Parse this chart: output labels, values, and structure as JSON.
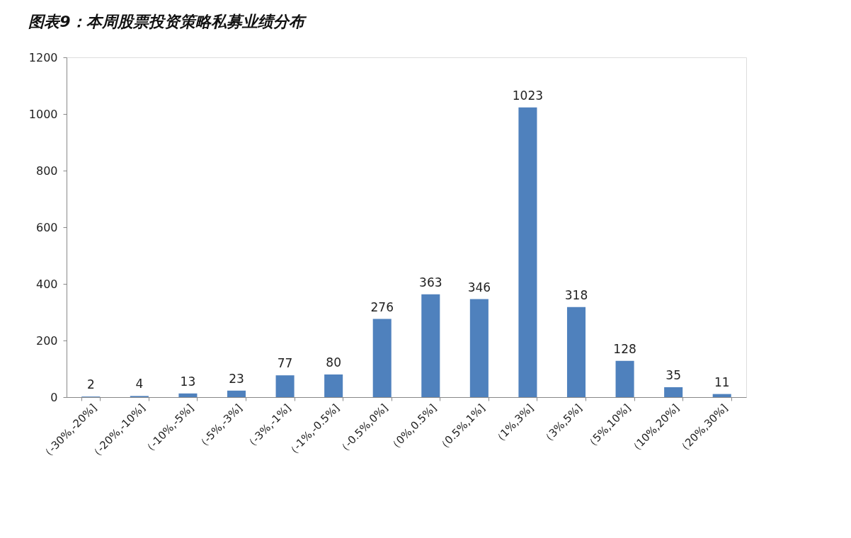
{
  "chart_data": {
    "type": "bar",
    "title": "图表9：本周股票投资策略私募业绩分布",
    "categories": [
      "（-30%,-20%]",
      "（-20%,-10%]",
      "（-10%,-5%]",
      "（-5%,-3%]",
      "（-3%,-1%]",
      "（-1%,-0.5%]",
      "（-0.5%,0%]",
      "（0%,0.5%]",
      "（0.5%,1%]",
      "（1%,3%]",
      "（3%,5%]",
      "（5%,10%]",
      "（10%,20%]",
      "（20%,30%]"
    ],
    "values": [
      2,
      4,
      13,
      23,
      77,
      80,
      276,
      363,
      346,
      1023,
      318,
      128,
      35,
      11
    ],
    "color": "#4f81bd",
    "ylim": [
      0,
      1200
    ],
    "yticks": [
      0,
      200,
      400,
      600,
      800,
      1000,
      1200
    ],
    "grid": false,
    "data_labels": true
  }
}
